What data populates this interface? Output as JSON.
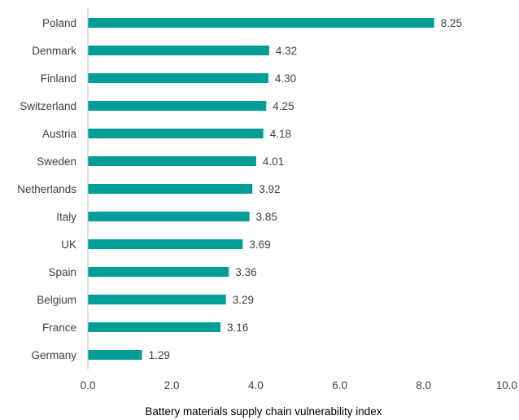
{
  "chart_data": {
    "type": "bar",
    "orientation": "horizontal",
    "categories": [
      "Poland",
      "Denmark",
      "Finland",
      "Switzerland",
      "Austria",
      "Sweden",
      "Netherlands",
      "Italy",
      "UK",
      "Spain",
      "Belgium",
      "France",
      "Germany"
    ],
    "values": [
      8.25,
      4.32,
      4.3,
      4.25,
      4.18,
      4.01,
      3.92,
      3.85,
      3.69,
      3.36,
      3.29,
      3.16,
      1.29
    ],
    "value_labels": [
      "8.25",
      "4.32",
      "4.30",
      "4.25",
      "4.18",
      "4.01",
      "3.92",
      "3.85",
      "3.69",
      "3.36",
      "3.29",
      "3.16",
      "1.29"
    ],
    "x_ticks": [
      0,
      2,
      4,
      6,
      8,
      10
    ],
    "x_tick_labels": [
      "0.0",
      "2.0",
      "4.0",
      "6.0",
      "8.0",
      "10.0"
    ],
    "xlim": [
      0,
      10
    ],
    "title": "",
    "xlabel": "Battery materials supply chain vulnerability index",
    "ylabel": "",
    "grid": false,
    "legend": "none",
    "colors": {
      "bar": "#009e96",
      "axis": "#bfbfbf",
      "text": "#404040"
    }
  }
}
